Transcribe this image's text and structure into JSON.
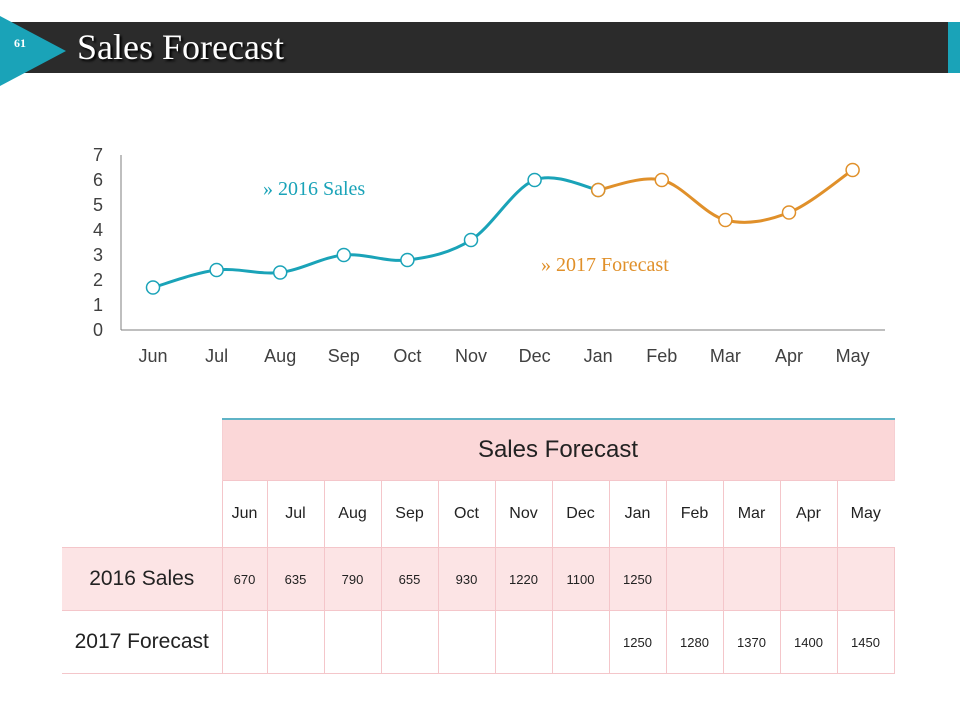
{
  "slide": {
    "number": "61",
    "title": "Sales Forecast"
  },
  "colors": {
    "sales": "#1aa3b8",
    "forecast": "#e0902a",
    "header": "#2b2b2b",
    "table_header_bg": "#fbd7d8"
  },
  "chart_data": {
    "type": "line",
    "categories": [
      "Jun",
      "Jul",
      "Aug",
      "Sep",
      "Oct",
      "Nov",
      "Dec",
      "Jan",
      "Feb",
      "Mar",
      "Apr",
      "May"
    ],
    "ylim": [
      0,
      7
    ],
    "yticks": [
      "0",
      "1",
      "2",
      "3",
      "4",
      "5",
      "6",
      "7"
    ],
    "series": [
      {
        "name": "2016 Sales",
        "legend_label": "» 2016 Sales",
        "values": [
          1.7,
          2.4,
          2.3,
          3.0,
          2.8,
          3.6,
          6.0,
          5.6,
          null,
          null,
          null,
          null
        ]
      },
      {
        "name": "2017 Forecast",
        "legend_label": "» 2017 Forecast",
        "values": [
          null,
          null,
          null,
          null,
          null,
          null,
          null,
          5.6,
          6.0,
          4.4,
          4.7,
          6.4
        ]
      }
    ]
  },
  "table": {
    "title": "Sales Forecast",
    "months": [
      "Jun",
      "Jul",
      "Aug",
      "Sep",
      "Oct",
      "Nov",
      "Dec",
      "Jan",
      "Feb",
      "Mar",
      "Apr",
      "May"
    ],
    "rows": [
      {
        "label": "2016 Sales",
        "values": [
          "670",
          "635",
          "790",
          "655",
          "930",
          "1220",
          "1100",
          "1250",
          "",
          "",
          "",
          ""
        ]
      },
      {
        "label": "2017 Forecast",
        "values": [
          "",
          "",
          "",
          "",
          "",
          "",
          "",
          "1250",
          "1280",
          "1370",
          "1400",
          "1450"
        ]
      }
    ]
  }
}
